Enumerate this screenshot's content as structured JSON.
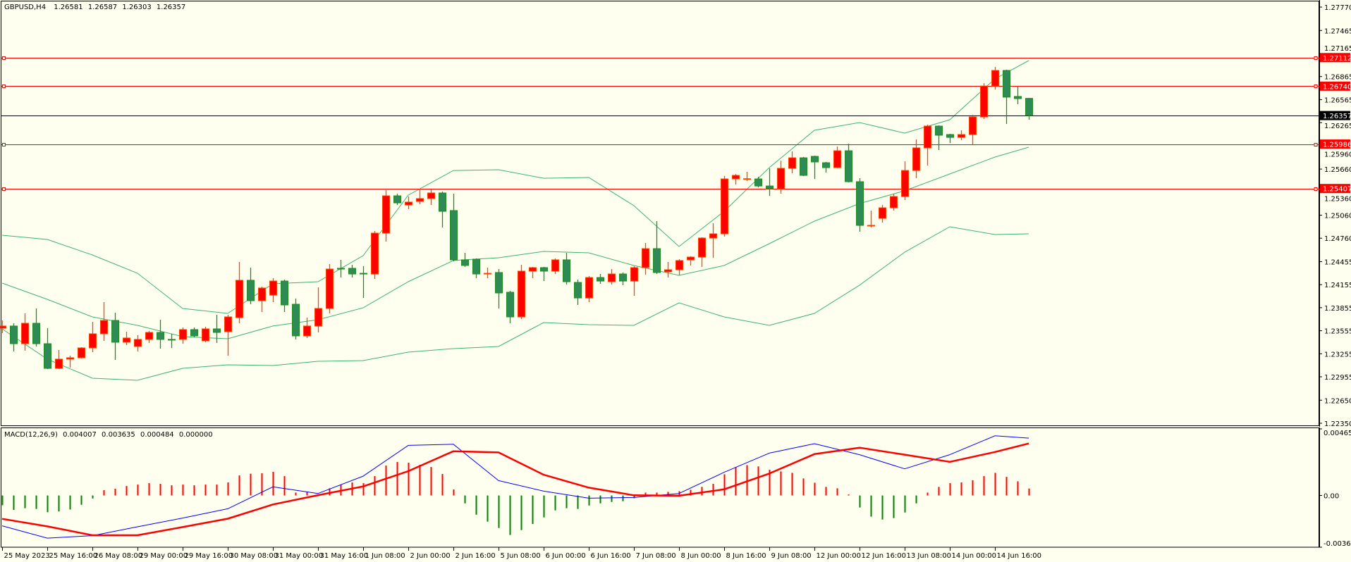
{
  "header": {
    "symbol": "GBPUSD,H4",
    "open": "1.26581",
    "high": "1.26587",
    "low": "1.26303",
    "close": "1.26357"
  },
  "macd_header": {
    "name": "MACD(12,26,9)",
    "main": "0.004007",
    "signal": "0.003635",
    "histogram": "0.000484",
    "extra": "0.000000"
  },
  "colors": {
    "background": "#FFFFF0",
    "bull_fill": "#FF0000",
    "bull_edge": "#FF4500",
    "bear_fill": "#2E8B57",
    "bear_edge": "#228B22",
    "bands": "#3CB371",
    "level_line": "#FF0000",
    "current_price": "#000000",
    "macd_main": "#0000FF",
    "macd_signal": "#FF0000",
    "hist_pos": "#FF0000",
    "hist_neg": "#008000"
  },
  "price_axis": {
    "labels": [
      "1.27770",
      "1.27465",
      "1.27165",
      "1.26865",
      "1.26565",
      "1.26265",
      "1.25960",
      "1.25660",
      "1.25360",
      "1.25060",
      "1.24760",
      "1.24455",
      "1.24155",
      "1.23855",
      "1.23555",
      "1.23255",
      "1.22955",
      "1.22650",
      "1.22350"
    ]
  },
  "levels": [
    {
      "price": "1.27112"
    },
    {
      "price": "1.26740"
    },
    {
      "price": "1.25986"
    },
    {
      "price": "1.25407"
    }
  ],
  "current_price": "1.26357",
  "macd_axis": {
    "labels": [
      "0.004652",
      "0.00",
      "-0.003615"
    ]
  },
  "chart_data": [
    {
      "type": "candlestick",
      "title": "GBPUSD,H4",
      "ylim": [
        1.22304,
        1.27862
      ],
      "x_labels": [
        "25 May 2023",
        "25 May 16:00",
        "26 May 08:00",
        "29 May 00:00",
        "29 May 16:00",
        "30 May 08:00",
        "31 May 00:00",
        "31 May 16:00",
        "1 Jun 08:00",
        "2 Jun 00:00",
        "2 Jun 16:00",
        "5 Jun 08:00",
        "6 Jun 00:00",
        "6 Jun 16:00",
        "7 Jun 08:00",
        "8 Jun 00:00",
        "8 Jun 16:00",
        "9 Jun 08:00",
        "12 Jun 00:00",
        "12 Jun 16:00",
        "13 Jun 08:00",
        "14 Jun 00:00",
        "14 Jun 16:00"
      ],
      "x_label_every_bars": 4,
      "open": [
        1.23588,
        1.23616,
        1.23386,
        1.23652,
        1.23386,
        1.23065,
        1.23185,
        1.23203,
        1.23331,
        1.23515,
        1.23689,
        1.23405,
        1.2335,
        1.23442,
        1.23533,
        1.23442,
        1.23442,
        1.2357,
        1.23423,
        1.23579,
        1.23543,
        1.23726,
        1.24212,
        1.23946,
        1.24019,
        1.24202,
        1.239,
        1.23488,
        1.23616,
        1.23845,
        1.24368,
        1.24368,
        1.24303,
        1.24294,
        1.24826,
        1.25312,
        1.25193,
        1.25239,
        1.25276,
        1.25349,
        1.2512,
        1.24478,
        1.24487,
        1.24294,
        1.24313,
        1.24056,
        1.23735,
        1.24331,
        1.24377,
        1.24331,
        1.24478,
        1.24184,
        1.23982,
        1.24248,
        1.24193,
        1.24294,
        1.24202,
        1.24377,
        1.24624,
        1.24322,
        1.24349,
        1.24478,
        1.24514,
        1.24762,
        1.24817,
        1.25532,
        1.2553,
        1.25532,
        1.2544,
        1.25404,
        1.2567,
        1.25807,
        1.25826,
        1.25743,
        1.25679,
        1.25899,
        1.25496,
        1.24922,
        1.25018,
        1.25156,
        1.25303,
        1.25642,
        1.25936,
        1.2622,
        1.2611,
        1.26073,
        1.2611,
        1.26339,
        1.26742,
        1.26945,
        1.26606,
        1.26581
      ],
      "high": [
        1.23689,
        1.23652,
        1.23781,
        1.23845,
        1.23588,
        1.23304,
        1.2323,
        1.2334,
        1.2367,
        1.23927,
        1.2379,
        1.23542,
        1.23497,
        1.23552,
        1.23698,
        1.23515,
        1.23597,
        1.23597,
        1.23607,
        1.23762,
        1.23762,
        1.2445,
        1.24377,
        1.24129,
        1.24239,
        1.24221,
        1.23974,
        1.23726,
        1.2412,
        1.24423,
        1.24478,
        1.24413,
        1.24395,
        1.24854,
        1.25386,
        1.2534,
        1.25303,
        1.25404,
        1.25395,
        1.25367,
        1.2534,
        1.24569,
        1.24496,
        1.24377,
        1.24358,
        1.24074,
        1.24413,
        1.24386,
        1.24386,
        1.24496,
        1.24569,
        1.24221,
        1.24267,
        1.24294,
        1.24358,
        1.24313,
        1.24395,
        1.24698,
        1.24982,
        1.2445,
        1.24487,
        1.24524,
        1.24771,
        1.24954,
        1.25569,
        1.25596,
        1.25624,
        1.2556,
        1.2567,
        1.2577,
        1.2589,
        1.25817,
        1.25835,
        1.25753,
        1.25954,
        1.25991,
        1.25541,
        1.25119,
        1.25193,
        1.2534,
        1.25761,
        1.26046,
        1.26238,
        1.26229,
        1.26119,
        1.26165,
        1.26367,
        1.26779,
        1.2699,
        1.26954,
        1.26742,
        1.26587
      ],
      "low": [
        1.23524,
        1.23285,
        1.23295,
        1.2335,
        1.23056,
        1.23056,
        1.23074,
        1.23194,
        1.23276,
        1.23423,
        1.23175,
        1.23368,
        1.23285,
        1.23396,
        1.23322,
        1.23331,
        1.23386,
        1.23469,
        1.23405,
        1.23396,
        1.2323,
        1.23652,
        1.239,
        1.23799,
        1.23927,
        1.23799,
        1.23442,
        1.2346,
        1.23533,
        1.23781,
        1.24248,
        1.24248,
        1.23982,
        1.2423,
        1.24716,
        1.25193,
        1.25138,
        1.25202,
        1.25193,
        1.24899,
        1.24459,
        1.24386,
        1.24239,
        1.24239,
        1.23845,
        1.23652,
        1.23707,
        1.24239,
        1.24202,
        1.24294,
        1.24157,
        1.23891,
        1.23927,
        1.24166,
        1.24157,
        1.24148,
        1.2401,
        1.24285,
        1.24294,
        1.24248,
        1.24276,
        1.24404,
        1.24386,
        1.24505,
        1.24781,
        1.25459,
        1.25505,
        1.25422,
        1.25312,
        1.2534,
        1.25606,
        1.25569,
        1.25532,
        1.25615,
        1.2567,
        1.25487,
        1.24845,
        1.24899,
        1.24964,
        1.2512,
        1.25257,
        1.25541,
        1.25706,
        1.25908,
        1.25999,
        1.26037,
        1.25981,
        1.26312,
        1.26697,
        1.26248,
        1.26505,
        1.26303
      ],
      "close": [
        1.23616,
        1.23386,
        1.23652,
        1.23386,
        1.23065,
        1.23185,
        1.23203,
        1.23331,
        1.23515,
        1.23689,
        1.23405,
        1.2346,
        1.23442,
        1.23533,
        1.23442,
        1.23433,
        1.2357,
        1.23488,
        1.23579,
        1.23533,
        1.23735,
        1.24212,
        1.23946,
        1.24111,
        1.24202,
        1.23891,
        1.23488,
        1.23616,
        1.23845,
        1.24358,
        1.24358,
        1.24294,
        1.24294,
        1.24826,
        1.25312,
        1.2522,
        1.2523,
        1.25276,
        1.25349,
        1.2511,
        1.24478,
        1.24405,
        1.24294,
        1.24303,
        1.24047,
        1.23735,
        1.24331,
        1.24377,
        1.24331,
        1.24478,
        1.24193,
        1.23982,
        1.24248,
        1.24202,
        1.24294,
        1.24202,
        1.24377,
        1.24624,
        1.24313,
        1.24349,
        1.24469,
        1.24514,
        1.24762,
        1.24817,
        1.25532,
        1.25578,
        1.25535,
        1.2544,
        1.25404,
        1.2567,
        1.25807,
        1.25578,
        1.25753,
        1.25679,
        1.25899,
        1.25496,
        1.24927,
        1.24928,
        1.25156,
        1.25303,
        1.25642,
        1.25936,
        1.2622,
        1.26101,
        1.26073,
        1.2611,
        1.26339,
        1.26742,
        1.26945,
        1.26597,
        1.26578,
        1.26357
      ],
      "bands": {
        "sample_bars": [
          0,
          4,
          8,
          12,
          16,
          20,
          24,
          28,
          32,
          36,
          40,
          44,
          48,
          52,
          56,
          60,
          64,
          68,
          72,
          76,
          80,
          84,
          88,
          91
        ],
        "upper": [
          1.24799,
          1.24744,
          1.24542,
          1.24303,
          1.23845,
          1.23781,
          1.24166,
          1.24193,
          1.24533,
          1.25321,
          1.25642,
          1.25652,
          1.25541,
          1.25551,
          1.25184,
          1.24652,
          1.2511,
          1.25679,
          1.26165,
          1.26266,
          1.26129,
          1.26303,
          1.26835,
          1.27073
        ],
        "middle": [
          1.24175,
          1.23964,
          1.23735,
          1.23625,
          1.23478,
          1.2345,
          1.23616,
          1.23698,
          1.23854,
          1.24193,
          1.24469,
          1.24505,
          1.24588,
          1.24569,
          1.24404,
          1.24276,
          1.24404,
          1.24689,
          1.24982,
          1.25211,
          1.25377,
          1.25597,
          1.25817,
          1.25945
        ],
        "lower": [
          1.23579,
          1.23185,
          1.22937,
          1.22909,
          1.23065,
          1.23111,
          1.23102,
          1.23157,
          1.23166,
          1.23276,
          1.23322,
          1.2335,
          1.23661,
          1.23634,
          1.23625,
          1.23918,
          1.23735,
          1.23625,
          1.23781,
          1.24148,
          1.24578,
          1.24909,
          1.24808,
          1.24817
        ]
      }
    },
    {
      "type": "line",
      "title": "MACD(12,26,9)",
      "ylim": [
        -0.003615,
        0.004652
      ],
      "histogram": [
        -0.00068,
        -0.00101,
        -0.00089,
        -0.00094,
        -0.00117,
        -0.00112,
        -0.00098,
        -0.00065,
        -0.00021,
        0.00037,
        0.00047,
        0.00066,
        0.00076,
        0.00086,
        0.00081,
        0.00071,
        0.00076,
        0.00071,
        0.00076,
        0.00076,
        0.00091,
        0.0014,
        0.00152,
        0.00155,
        0.00165,
        0.00135,
        0.0002,
        0.00025,
        0.0,
        0.0005,
        0.00076,
        0.00091,
        0.00086,
        0.00135,
        0.00209,
        0.00234,
        0.00229,
        0.00214,
        0.00199,
        0.0015,
        0.00042,
        -0.00055,
        -0.00134,
        -0.00183,
        -0.00227,
        -0.00276,
        -0.00242,
        -0.00199,
        -0.00153,
        -0.00104,
        -0.00089,
        -0.00094,
        -0.0007,
        -0.00055,
        -0.00045,
        -0.0004,
        -0.00019,
        0.0002,
        0.0002,
        0.00025,
        0.0003,
        0.0004,
        0.0006,
        0.00081,
        0.00148,
        0.00198,
        0.00212,
        0.00203,
        0.0018,
        0.00168,
        0.00158,
        0.00119,
        0.00089,
        0.0006,
        0.0005,
        7e-05,
        -0.00084,
        -0.00148,
        -0.00168,
        -0.00158,
        -0.00119,
        -0.00055,
        0.0002,
        0.0006,
        0.00086,
        0.00091,
        0.00106,
        0.00135,
        0.00158,
        0.0013,
        0.00099,
        0.000484
      ],
      "sample_bars": [
        0,
        4,
        8,
        12,
        16,
        20,
        24,
        28,
        32,
        36,
        40,
        44,
        48,
        52,
        56,
        60,
        64,
        68,
        72,
        76,
        80,
        84,
        88,
        91
      ],
      "main": [
        -0.00212,
        -0.00298,
        -0.00281,
        -0.00219,
        -0.00158,
        -0.00093,
        0.0006,
        0.00014,
        0.00135,
        0.0035,
        0.00358,
        0.00104,
        0.0003,
        -0.00019,
        -0.00014,
        0.00014,
        0.00162,
        0.00296,
        0.00362,
        0.00285,
        0.00186,
        0.00285,
        0.00417,
        0.004007
      ],
      "signal": [
        -0.00163,
        -0.00216,
        -0.00278,
        -0.00278,
        -0.00221,
        -0.00162,
        -0.00063,
        2e-05,
        0.00063,
        0.0017,
        0.00309,
        0.00301,
        0.00145,
        0.00055,
        1e-05,
        -2e-05,
        0.00043,
        0.00153,
        0.00289,
        0.00334,
        0.00285,
        0.00235,
        0.00304,
        0.003635
      ]
    }
  ]
}
